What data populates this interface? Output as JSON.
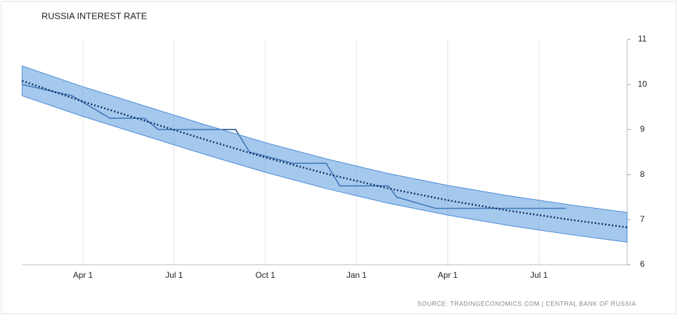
{
  "chart_data": {
    "type": "line",
    "title": "RUSSIA INTEREST RATE",
    "source": "SOURCE: TRADINGECONOMICS.COM | CENTRAL BANK OF RUSSIA",
    "xlim": [
      0,
      19.9
    ],
    "xticks": [
      {
        "value": 2,
        "label": "Apr 1"
      },
      {
        "value": 5,
        "label": "Jul 1"
      },
      {
        "value": 8,
        "label": "Oct 1"
      },
      {
        "value": 11,
        "label": "Jan 1"
      },
      {
        "value": 14,
        "label": "Apr 1"
      },
      {
        "value": 17,
        "label": "Jul 1"
      }
    ],
    "ylim": [
      6,
      11
    ],
    "yticks": [
      6,
      7,
      8,
      9,
      10,
      11
    ],
    "grid": true,
    "series": [
      {
        "color": "#1f4e8c",
        "style": "solid",
        "x": [
          0,
          1.64,
          2.89,
          4.02,
          4.48,
          7.02,
          7.48,
          8.91,
          10.0,
          10.45,
          12.05,
          12.32,
          13.61,
          17.89
        ],
        "values": [
          10.0,
          9.75,
          9.25,
          9.25,
          9.0,
          9.0,
          8.5,
          8.25,
          8.25,
          7.75,
          7.75,
          7.5,
          7.25,
          7.25
        ]
      },
      {
        "color": "#0b2a5e",
        "style": "dotted",
        "x": [
          0,
          2,
          4,
          6,
          8,
          10,
          12,
          14,
          16,
          18,
          19.9
        ],
        "values": [
          10.08,
          9.62,
          9.2,
          8.78,
          8.38,
          8.02,
          7.7,
          7.43,
          7.2,
          7.0,
          6.83
        ],
        "band": {
          "color": "#5b9bdf",
          "upper": [
            10.41,
            9.95,
            9.53,
            9.11,
            8.71,
            8.35,
            8.03,
            7.76,
            7.53,
            7.33,
            7.16
          ],
          "lower": [
            9.75,
            9.29,
            8.87,
            8.45,
            8.05,
            7.69,
            7.37,
            7.1,
            6.87,
            6.67,
            6.5
          ]
        }
      }
    ]
  }
}
